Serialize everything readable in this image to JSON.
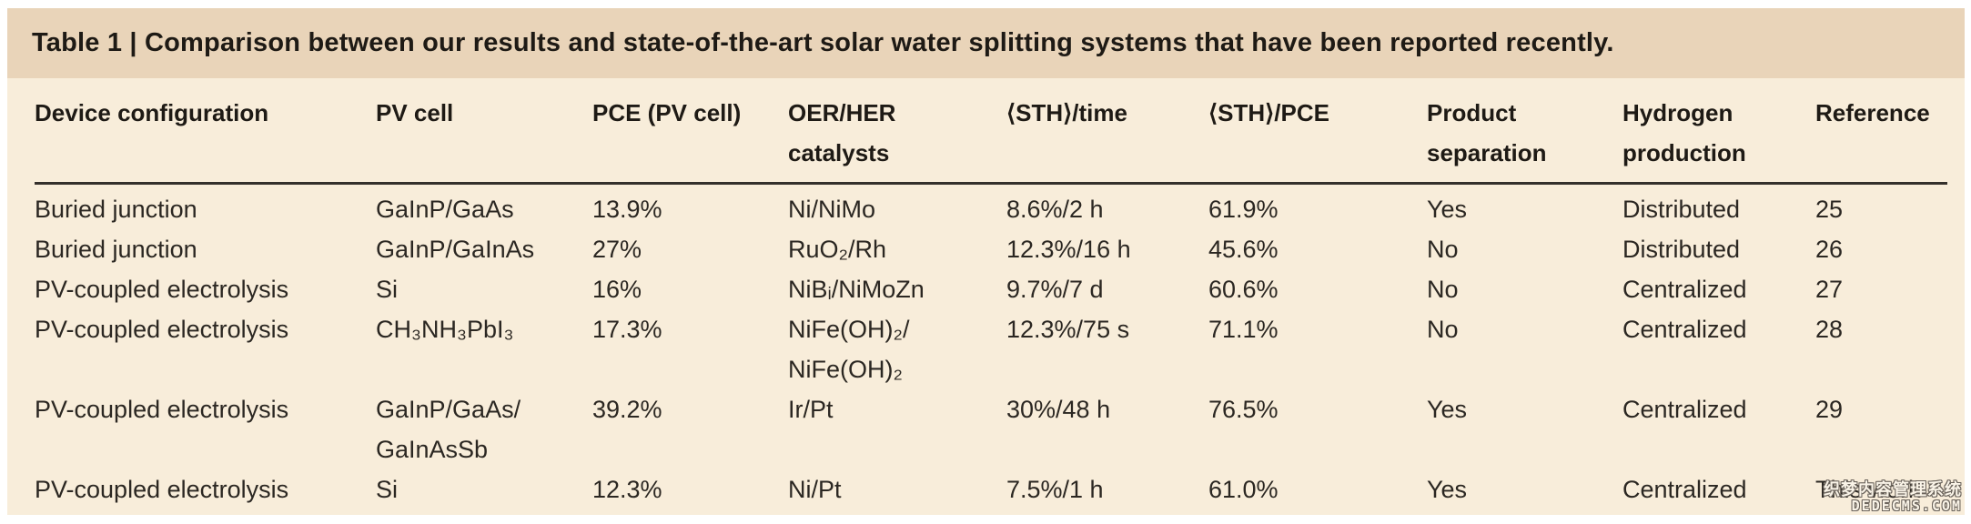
{
  "title": "Table 1 | Comparison between our results and state-of-the-art solar water splitting systems that have been reported recently.",
  "colors": {
    "page_bg": "#ffffff",
    "title_bar_bg": "#e9d4b9",
    "table_bg": "#f8edda",
    "text": "#2b2722",
    "rule": "#34302b"
  },
  "chart_data": {
    "type": "table",
    "title": "Table 1 | Comparison between our results and state-of-the-art solar water splitting systems that have been reported recently.",
    "columns": [
      "Device configuration",
      "PV cell",
      "PCE (PV cell)",
      "OER/HER\ncatalysts",
      "⟨STH⟩/time",
      "⟨STH⟩/PCE",
      "Product\nseparation",
      "Hydrogen\nproduction",
      "Reference"
    ],
    "rows": [
      [
        "Buried junction",
        "GaInP/GaAs",
        "13.9%",
        "Ni/NiMo",
        "8.6%/2 h",
        "61.9%",
        "Yes",
        "Distributed",
        "25"
      ],
      [
        "Buried junction",
        "GaInP/GaInAs",
        "27%",
        "RuO₂/Rh",
        "12.3%/16 h",
        "45.6%",
        "No",
        "Distributed",
        "26"
      ],
      [
        "PV-coupled electrolysis",
        "Si",
        "16%",
        "NiBᵢ/NiMoZn",
        "9.7%/7 d",
        "60.6%",
        "No",
        "Centralized",
        "27"
      ],
      [
        "PV-coupled electrolysis",
        "CH₃NH₃PbI₃",
        "17.3%",
        "NiFe(OH)₂/\nNiFe(OH)₂",
        "12.3%/75 s",
        "71.1%",
        "No",
        "Centralized",
        "28"
      ],
      [
        "PV-coupled electrolysis",
        "GaInP/GaAs/\nGaInAsSb",
        "39.2%",
        "Ir/Pt",
        "30%/48 h",
        "76.5%",
        "Yes",
        "Centralized",
        "29"
      ],
      [
        "PV-coupled electrolysis",
        "Si",
        "12.3%",
        "Ni/Pt",
        "7.5%/1 h",
        "61.0%",
        "Yes",
        "Centralized",
        "This work"
      ]
    ]
  },
  "watermark": {
    "line1": "织梦内容管理系统",
    "line2": "DEDECMS.COM"
  }
}
